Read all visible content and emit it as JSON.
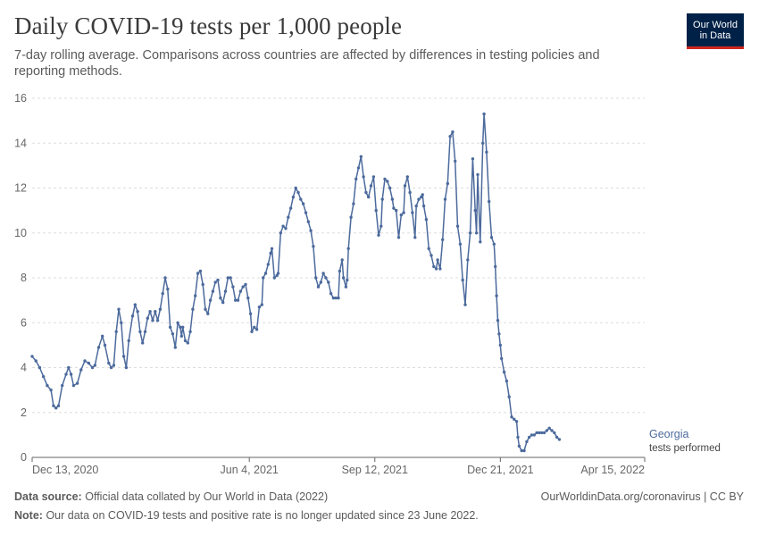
{
  "header": {
    "title": "Daily COVID-19 tests per 1,000 people",
    "subtitle": "7-day rolling average. Comparisons across countries are affected by differences in testing policies and reporting methods.",
    "logo_line1": "Our World",
    "logo_line2": "in Data"
  },
  "footer": {
    "source_label": "Data source:",
    "source_text": "Official data collated by Our World in Data (2022)",
    "url": "OurWorldinData.org/coronavirus | CC BY",
    "note_label": "Note:",
    "note_text": "Our data on COVID-19 tests and positive rate is no longer updated since 23 June 2022."
  },
  "colors": {
    "series": "#4c6a9c",
    "grid": "#dddddd",
    "axis": "#666666"
  },
  "chart_data": {
    "type": "line",
    "title": "Daily COVID-19 tests per 1,000 people",
    "ylim": [
      0,
      16
    ],
    "yticks": [
      0,
      2,
      4,
      6,
      8,
      10,
      12,
      14,
      16
    ],
    "xlim_days": [
      0,
      488
    ],
    "xticks": [
      {
        "day": 0,
        "label": "Dec 13, 2020"
      },
      {
        "day": 173,
        "label": "Jun 4, 2021"
      },
      {
        "day": 273,
        "label": "Sep 12, 2021"
      },
      {
        "day": 373,
        "label": "Dec 21, 2021"
      },
      {
        "day": 488,
        "label": "Apr 15, 2022"
      }
    ],
    "series": [
      {
        "name": "Georgia",
        "sublabel": "tests performed",
        "points": [
          [
            0,
            4.5
          ],
          [
            3,
            4.3
          ],
          [
            6,
            4.0
          ],
          [
            9,
            3.6
          ],
          [
            12,
            3.2
          ],
          [
            15,
            3.0
          ],
          [
            17,
            2.3
          ],
          [
            19,
            2.2
          ],
          [
            21,
            2.3
          ],
          [
            24,
            3.2
          ],
          [
            27,
            3.7
          ],
          [
            29,
            4.0
          ],
          [
            31,
            3.7
          ],
          [
            33,
            3.2
          ],
          [
            36,
            3.3
          ],
          [
            39,
            3.9
          ],
          [
            42,
            4.3
          ],
          [
            45,
            4.2
          ],
          [
            48,
            4.0
          ],
          [
            50,
            4.1
          ],
          [
            53,
            4.9
          ],
          [
            56,
            5.4
          ],
          [
            58,
            5.0
          ],
          [
            61,
            4.2
          ],
          [
            63,
            4.0
          ],
          [
            65,
            4.1
          ],
          [
            67,
            5.6
          ],
          [
            69,
            6.6
          ],
          [
            71,
            6.0
          ],
          [
            73,
            4.5
          ],
          [
            75,
            4.0
          ],
          [
            77,
            5.2
          ],
          [
            80,
            6.3
          ],
          [
            82,
            6.8
          ],
          [
            84,
            6.5
          ],
          [
            86,
            5.6
          ],
          [
            88,
            5.1
          ],
          [
            90,
            5.6
          ],
          [
            92,
            6.2
          ],
          [
            94,
            6.5
          ],
          [
            96,
            6.1
          ],
          [
            98,
            6.5
          ],
          [
            100,
            6.1
          ],
          [
            102,
            6.6
          ],
          [
            104,
            7.3
          ],
          [
            106,
            8.0
          ],
          [
            108,
            7.5
          ],
          [
            110,
            5.8
          ],
          [
            112,
            5.5
          ],
          [
            114,
            4.9
          ],
          [
            116,
            6.0
          ],
          [
            118,
            5.8
          ],
          [
            119,
            5.4
          ],
          [
            120,
            5.8
          ],
          [
            122,
            5.2
          ],
          [
            124,
            5.1
          ],
          [
            126,
            5.6
          ],
          [
            128,
            6.6
          ],
          [
            130,
            7.2
          ],
          [
            132,
            8.2
          ],
          [
            134,
            8.3
          ],
          [
            136,
            7.7
          ],
          [
            138,
            6.6
          ],
          [
            140,
            6.4
          ],
          [
            142,
            7.0
          ],
          [
            144,
            7.4
          ],
          [
            146,
            7.8
          ],
          [
            148,
            7.9
          ],
          [
            150,
            7.1
          ],
          [
            152,
            6.9
          ],
          [
            154,
            7.4
          ],
          [
            156,
            8.0
          ],
          [
            158,
            8.0
          ],
          [
            160,
            7.6
          ],
          [
            162,
            7.0
          ],
          [
            164,
            7.0
          ],
          [
            166,
            7.4
          ],
          [
            168,
            7.6
          ],
          [
            170,
            7.7
          ],
          [
            172,
            7.1
          ],
          [
            174,
            6.4
          ],
          [
            175,
            5.6
          ],
          [
            177,
            5.8
          ],
          [
            179,
            5.7
          ],
          [
            181,
            6.7
          ],
          [
            183,
            6.8
          ],
          [
            184,
            8.0
          ],
          [
            186,
            8.2
          ],
          [
            188,
            8.6
          ],
          [
            190,
            9.1
          ],
          [
            191,
            9.3
          ],
          [
            193,
            8.0
          ],
          [
            195,
            8.1
          ],
          [
            196,
            8.2
          ],
          [
            198,
            10.0
          ],
          [
            200,
            10.3
          ],
          [
            202,
            10.2
          ],
          [
            204,
            10.7
          ],
          [
            206,
            11.1
          ],
          [
            208,
            11.6
          ],
          [
            210,
            12.0
          ],
          [
            212,
            11.8
          ],
          [
            214,
            11.5
          ],
          [
            216,
            11.3
          ],
          [
            218,
            10.9
          ],
          [
            220,
            10.5
          ],
          [
            222,
            10.1
          ],
          [
            224,
            9.4
          ],
          [
            226,
            8.0
          ],
          [
            228,
            7.6
          ],
          [
            230,
            7.8
          ],
          [
            232,
            8.2
          ],
          [
            234,
            8.0
          ],
          [
            236,
            7.8
          ],
          [
            238,
            7.3
          ],
          [
            240,
            7.1
          ],
          [
            242,
            7.1
          ],
          [
            244,
            7.1
          ],
          [
            245,
            8.3
          ],
          [
            247,
            8.8
          ],
          [
            248,
            8.0
          ],
          [
            250,
            7.6
          ],
          [
            251,
            7.9
          ],
          [
            252,
            9.3
          ],
          [
            254,
            10.7
          ],
          [
            256,
            11.3
          ],
          [
            258,
            12.4
          ],
          [
            260,
            12.9
          ],
          [
            262,
            13.4
          ],
          [
            264,
            12.5
          ],
          [
            266,
            11.8
          ],
          [
            268,
            11.6
          ],
          [
            270,
            12.1
          ],
          [
            272,
            12.5
          ],
          [
            274,
            11.0
          ],
          [
            276,
            9.9
          ],
          [
            278,
            10.3
          ],
          [
            279,
            11.5
          ],
          [
            281,
            12.4
          ],
          [
            283,
            12.3
          ],
          [
            285,
            12.0
          ],
          [
            287,
            11.5
          ],
          [
            288,
            11.1
          ],
          [
            290,
            11.0
          ],
          [
            292,
            9.8
          ],
          [
            294,
            10.8
          ],
          [
            296,
            10.9
          ],
          [
            297,
            12.1
          ],
          [
            299,
            12.5
          ],
          [
            301,
            11.8
          ],
          [
            303,
            10.9
          ],
          [
            305,
            9.8
          ],
          [
            306,
            11.2
          ],
          [
            308,
            11.5
          ],
          [
            310,
            11.6
          ],
          [
            311,
            11.7
          ],
          [
            312,
            11.2
          ],
          [
            314,
            10.6
          ],
          [
            316,
            9.3
          ],
          [
            318,
            9.0
          ],
          [
            320,
            8.5
          ],
          [
            322,
            8.4
          ],
          [
            323,
            8.8
          ],
          [
            325,
            8.4
          ],
          [
            327,
            9.7
          ],
          [
            329,
            11.5
          ],
          [
            331,
            12.2
          ],
          [
            333,
            14.3
          ],
          [
            335,
            14.5
          ],
          [
            337,
            13.2
          ],
          [
            339,
            10.3
          ],
          [
            341,
            9.5
          ],
          [
            343,
            7.9
          ],
          [
            345,
            6.8
          ],
          [
            347,
            8.8
          ],
          [
            349,
            10.0
          ],
          [
            351,
            13.3
          ],
          [
            353,
            11.0
          ],
          [
            354,
            10.0
          ],
          [
            355,
            12.6
          ],
          [
            357,
            9.6
          ],
          [
            359,
            14.0
          ],
          [
            360,
            15.3
          ],
          [
            362,
            13.6
          ],
          [
            364,
            11.4
          ],
          [
            366,
            9.8
          ],
          [
            368,
            9.5
          ],
          [
            369,
            8.5
          ],
          [
            370,
            7.2
          ],
          [
            371,
            6.1
          ],
          [
            372,
            5.5
          ],
          [
            373,
            5.0
          ],
          [
            374,
            4.4
          ],
          [
            376,
            3.8
          ],
          [
            378,
            3.4
          ],
          [
            380,
            2.7
          ],
          [
            382,
            1.8
          ],
          [
            384,
            1.7
          ],
          [
            386,
            1.6
          ],
          [
            387,
            0.9
          ],
          [
            388,
            0.5
          ],
          [
            390,
            0.3
          ],
          [
            392,
            0.3
          ],
          [
            394,
            0.7
          ],
          [
            396,
            0.9
          ],
          [
            398,
            1.0
          ],
          [
            400,
            1.0
          ],
          [
            402,
            1.1
          ],
          [
            404,
            1.1
          ],
          [
            406,
            1.1
          ],
          [
            408,
            1.1
          ],
          [
            410,
            1.2
          ],
          [
            412,
            1.3
          ],
          [
            414,
            1.2
          ],
          [
            416,
            1.1
          ],
          [
            418,
            0.9
          ],
          [
            420,
            0.8
          ]
        ]
      }
    ]
  }
}
